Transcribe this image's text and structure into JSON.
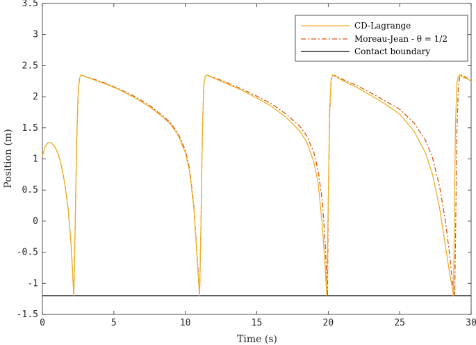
{
  "chart_data": {
    "type": "line",
    "xlabel": "Time (s)",
    "ylabel": "Position (m)",
    "xlim": [
      0,
      30
    ],
    "ylim": [
      -1.5,
      3.5
    ],
    "xticks": [
      "0",
      "5",
      "10",
      "15",
      "20",
      "25",
      "30"
    ],
    "yticks": [
      "-1.5",
      "-1",
      "-0.5",
      "0",
      "0.5",
      "1",
      "1.5",
      "2",
      "2.5",
      "3",
      "3.5"
    ],
    "grid": false,
    "legend_position": "top-right",
    "colors": {
      "cd": "#EDB120",
      "mj": "#D95319",
      "contact": "#000000"
    },
    "series": [
      {
        "name": "CD-Lagrange",
        "style": "solid",
        "x": [
          0,
          0.2,
          0.4,
          0.6,
          0.8,
          1.0,
          1.2,
          1.4,
          1.6,
          1.8,
          2.0,
          2.1,
          2.15,
          2.2,
          2.3,
          2.4,
          2.5,
          2.6,
          2.7,
          3.5,
          4.5,
          5.5,
          6.5,
          7.5,
          8.5,
          9.0,
          9.5,
          10.0,
          10.3,
          10.6,
          10.8,
          10.95,
          11.0,
          11.1,
          11.2,
          11.3,
          11.4,
          11.5,
          12.0,
          13.0,
          14.0,
          15.0,
          16.0,
          17.0,
          18.0,
          18.5,
          19.0,
          19.3,
          19.6,
          19.8,
          19.85,
          19.9,
          20.0,
          20.1,
          20.2,
          20.3,
          20.5,
          21.0,
          22.0,
          23.0,
          24.0,
          25.0,
          26.0,
          26.8,
          27.3,
          27.8,
          28.2,
          28.5,
          28.7,
          28.75,
          28.8,
          28.9,
          29.0,
          29.1,
          29.2,
          29.4,
          29.6,
          29.8,
          30.0
        ],
        "y": [
          1.05,
          1.2,
          1.26,
          1.26,
          1.22,
          1.14,
          1.01,
          0.82,
          0.55,
          0.2,
          -0.35,
          -0.75,
          -1.0,
          -1.2,
          0.0,
          1.3,
          2.05,
          2.3,
          2.35,
          2.28,
          2.2,
          2.1,
          1.98,
          1.84,
          1.66,
          1.55,
          1.38,
          1.1,
          0.8,
          0.2,
          -0.5,
          -1.05,
          -1.2,
          0.0,
          1.5,
          2.2,
          2.33,
          2.35,
          2.3,
          2.2,
          2.1,
          1.98,
          1.85,
          1.68,
          1.45,
          1.27,
          0.95,
          0.6,
          -0.1,
          -0.8,
          -1.0,
          -1.2,
          0.3,
          1.8,
          2.28,
          2.35,
          2.33,
          2.26,
          2.15,
          2.02,
          1.88,
          1.72,
          1.45,
          1.1,
          0.75,
          0.2,
          -0.4,
          -0.85,
          -1.1,
          -1.2,
          -0.6,
          1.5,
          2.2,
          2.33,
          2.35,
          2.32,
          2.3,
          2.28,
          2.25
        ]
      },
      {
        "name": "Moreau-Jean - θ = 1/2",
        "style": "dash-dot",
        "x": [
          0,
          0.2,
          0.4,
          0.6,
          0.8,
          1.0,
          1.2,
          1.4,
          1.6,
          1.8,
          2.0,
          2.1,
          2.15,
          2.2,
          2.3,
          2.4,
          2.5,
          2.6,
          2.7,
          3.5,
          4.5,
          5.5,
          6.5,
          7.5,
          8.5,
          9.0,
          9.5,
          10.0,
          10.3,
          10.6,
          10.8,
          10.95,
          11.0,
          11.1,
          11.2,
          11.3,
          11.4,
          11.5,
          12.0,
          13.0,
          14.0,
          15.0,
          16.0,
          17.0,
          18.0,
          18.5,
          19.0,
          19.3,
          19.6,
          19.8,
          19.9,
          19.95,
          20.0,
          20.1,
          20.2,
          20.3,
          20.5,
          21.0,
          22.0,
          23.0,
          24.0,
          25.0,
          26.0,
          26.8,
          27.3,
          27.8,
          28.2,
          28.5,
          28.7,
          28.85,
          28.9,
          29.0,
          29.1,
          29.2,
          29.3,
          29.5,
          29.7,
          29.9,
          30.0
        ],
        "y": [
          1.05,
          1.2,
          1.26,
          1.26,
          1.22,
          1.14,
          1.01,
          0.82,
          0.55,
          0.2,
          -0.35,
          -0.75,
          -1.0,
          -1.2,
          0.0,
          1.3,
          2.05,
          2.3,
          2.35,
          2.29,
          2.21,
          2.11,
          2.0,
          1.86,
          1.68,
          1.57,
          1.41,
          1.14,
          0.84,
          0.25,
          -0.45,
          -1.0,
          -1.2,
          0.0,
          1.5,
          2.2,
          2.33,
          2.35,
          2.31,
          2.22,
          2.12,
          2.01,
          1.89,
          1.73,
          1.53,
          1.37,
          1.1,
          0.8,
          0.3,
          -0.4,
          -1.0,
          -1.2,
          0.2,
          1.7,
          2.25,
          2.35,
          2.34,
          2.28,
          2.18,
          2.06,
          1.93,
          1.8,
          1.58,
          1.3,
          1.02,
          0.55,
          0.0,
          -0.55,
          -1.0,
          -1.2,
          -0.4,
          1.4,
          2.15,
          2.32,
          2.35,
          2.33,
          2.3,
          2.27,
          2.26
        ]
      },
      {
        "name": "Contact boundary",
        "style": "solid",
        "x": [
          0,
          30
        ],
        "y": [
          -1.2,
          -1.2
        ]
      }
    ]
  }
}
